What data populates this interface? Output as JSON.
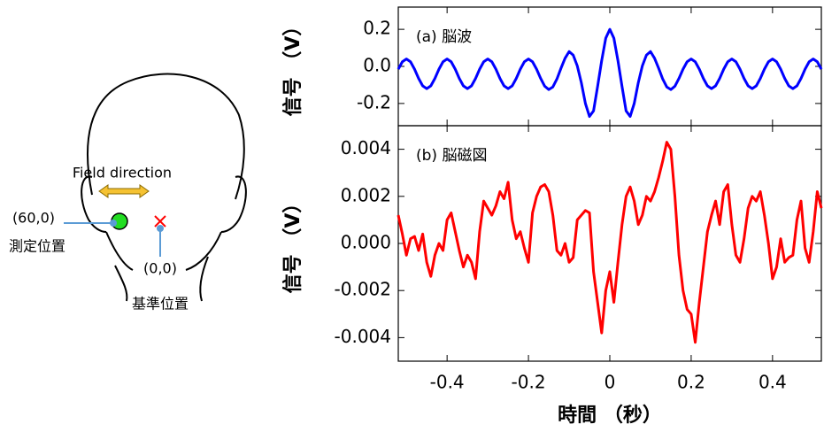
{
  "diagram": {
    "field_label": "Field direction",
    "measure_coord": "(60,0)",
    "measure_label": "測定位置",
    "ref_coord": "(0,0)",
    "ref_label": "基準位置"
  },
  "chart_data": [
    {
      "type": "line",
      "panel_label": "(a) 脳波",
      "y_label": "信号 （V）",
      "x": [
        -0.52,
        -0.51,
        -0.5,
        -0.49,
        -0.48,
        -0.47,
        -0.46,
        -0.45,
        -0.44,
        -0.43,
        -0.42,
        -0.41,
        -0.4,
        -0.39,
        -0.38,
        -0.37,
        -0.36,
        -0.35,
        -0.34,
        -0.33,
        -0.32,
        -0.31,
        -0.3,
        -0.29,
        -0.28,
        -0.27,
        -0.26,
        -0.25,
        -0.24,
        -0.23,
        -0.22,
        -0.21,
        -0.2,
        -0.19,
        -0.18,
        -0.17,
        -0.16,
        -0.15,
        -0.14,
        -0.13,
        -0.12,
        -0.11,
        -0.1,
        -0.09,
        -0.08,
        -0.07,
        -0.06,
        -0.05,
        -0.04,
        -0.03,
        -0.02,
        -0.01,
        0,
        0.01,
        0.02,
        0.03,
        0.04,
        0.05,
        0.06,
        0.07,
        0.08,
        0.09,
        0.1,
        0.11,
        0.12,
        0.13,
        0.14,
        0.15,
        0.16,
        0.17,
        0.18,
        0.19,
        0.2,
        0.21,
        0.22,
        0.23,
        0.24,
        0.25,
        0.26,
        0.27,
        0.28,
        0.29,
        0.3,
        0.31,
        0.32,
        0.33,
        0.34,
        0.35,
        0.36,
        0.37,
        0.38,
        0.39,
        0.4,
        0.41,
        0.42,
        0.43,
        0.44,
        0.45,
        0.46,
        0.47,
        0.48,
        0.49,
        0.5,
        0.51,
        0.52
      ],
      "series": [
        {
          "color": "#0000ff",
          "values": [
            -0.015,
            0.025,
            0.04,
            0.025,
            -0.015,
            -0.065,
            -0.105,
            -0.12,
            -0.105,
            -0.065,
            -0.015,
            0.025,
            0.04,
            0.025,
            -0.015,
            -0.065,
            -0.105,
            -0.12,
            -0.105,
            -0.065,
            -0.015,
            0.025,
            0.04,
            0.025,
            -0.015,
            -0.065,
            -0.105,
            -0.12,
            -0.105,
            -0.065,
            -0.015,
            0.025,
            0.04,
            0.025,
            -0.015,
            -0.065,
            -0.107,
            -0.125,
            -0.111,
            -0.068,
            -0.01,
            0.044,
            0.08,
            0.061,
            0.003,
            -0.088,
            -0.2,
            -0.27,
            -0.24,
            -0.108,
            0.031,
            0.152,
            0.2,
            0.152,
            0.031,
            -0.108,
            -0.24,
            -0.27,
            -0.2,
            -0.088,
            0.003,
            0.061,
            0.08,
            0.044,
            -0.01,
            -0.068,
            -0.111,
            -0.125,
            -0.107,
            -0.065,
            -0.015,
            0.025,
            0.04,
            0.025,
            -0.015,
            -0.065,
            -0.105,
            -0.12,
            -0.105,
            -0.065,
            -0.015,
            0.025,
            0.04,
            0.025,
            -0.015,
            -0.065,
            -0.105,
            -0.12,
            -0.105,
            -0.065,
            -0.015,
            0.025,
            0.04,
            0.025,
            -0.015,
            -0.065,
            -0.105,
            -0.12,
            -0.105,
            -0.065,
            -0.015,
            0.025,
            0.04,
            0.025,
            -0.015
          ]
        }
      ],
      "xlim": [
        -0.52,
        0.52
      ],
      "ylim": [
        -0.32,
        0.32
      ],
      "yticks": [
        -0.2,
        {
          "value": 0,
          "label": "0.0"
        },
        0.2
      ]
    },
    {
      "type": "line",
      "panel_label": "(b) 脳磁図",
      "y_label": "信号 （V）",
      "x_label": "時間 （秒）",
      "x": [
        -0.52,
        -0.51,
        -0.5,
        -0.49,
        -0.48,
        -0.47,
        -0.46,
        -0.45,
        -0.44,
        -0.43,
        -0.42,
        -0.41,
        -0.4,
        -0.39,
        -0.38,
        -0.37,
        -0.36,
        -0.35,
        -0.34,
        -0.33,
        -0.32,
        -0.31,
        -0.3,
        -0.29,
        -0.28,
        -0.27,
        -0.26,
        -0.25,
        -0.24,
        -0.23,
        -0.22,
        -0.21,
        -0.2,
        -0.19,
        -0.18,
        -0.17,
        -0.16,
        -0.15,
        -0.14,
        -0.13,
        -0.12,
        -0.11,
        -0.1,
        -0.09,
        -0.08,
        -0.07,
        -0.06,
        -0.05,
        -0.04,
        -0.03,
        -0.02,
        -0.01,
        0,
        0.01,
        0.02,
        0.03,
        0.04,
        0.05,
        0.06,
        0.07,
        0.08,
        0.09,
        0.1,
        0.11,
        0.12,
        0.13,
        0.14,
        0.15,
        0.16,
        0.17,
        0.18,
        0.19,
        0.2,
        0.21,
        0.22,
        0.23,
        0.24,
        0.25,
        0.26,
        0.27,
        0.28,
        0.29,
        0.3,
        0.31,
        0.32,
        0.33,
        0.34,
        0.35,
        0.36,
        0.37,
        0.38,
        0.39,
        0.4,
        0.41,
        0.42,
        0.43,
        0.44,
        0.45,
        0.46,
        0.47,
        0.48,
        0.49,
        0.5,
        0.51,
        0.52
      ],
      "series": [
        {
          "color": "#ff0000",
          "values": [
            0.0012,
            0.0004,
            -0.0005,
            0.0002,
            0.0003,
            -0.0003,
            0.0004,
            -0.0008,
            -0.0014,
            -0.0005,
            0.0,
            -0.0003,
            0.001,
            0.0013,
            0.0005,
            -0.0003,
            -0.001,
            -0.0005,
            -0.0008,
            -0.0015,
            0.0005,
            0.0018,
            0.0015,
            0.0012,
            0.0016,
            0.0022,
            0.0019,
            0.0026,
            0.001,
            0.0002,
            0.0005,
            -0.0002,
            -0.0008,
            0.0013,
            0.002,
            0.0024,
            0.0025,
            0.0022,
            0.0012,
            -0.0003,
            -0.0005,
            0.0,
            -0.0008,
            -0.0006,
            0.001,
            0.0012,
            0.0014,
            0.0013,
            -0.0012,
            -0.0025,
            -0.0038,
            -0.002,
            -0.0012,
            -0.0025,
            -0.0008,
            0.0008,
            0.002,
            0.0024,
            0.0018,
            0.0008,
            0.0012,
            0.002,
            0.0018,
            0.0022,
            0.0028,
            0.0035,
            0.0043,
            0.004,
            0.002,
            -0.0005,
            -0.002,
            -0.0028,
            -0.003,
            -0.0042,
            -0.0025,
            -0.001,
            0.0005,
            0.0012,
            0.0018,
            0.0008,
            0.0022,
            0.0025,
            0.0008,
            -0.0005,
            -0.0008,
            0.0002,
            0.0015,
            0.002,
            0.0018,
            0.0022,
            0.0012,
            0.0,
            -0.0015,
            -0.001,
            0.0002,
            -0.0008,
            -0.0006,
            -0.0005,
            0.001,
            0.0018,
            -0.0002,
            -0.0008,
            0.0005,
            0.0022,
            0.0015
          ]
        }
      ],
      "xlim": [
        -0.52,
        0.52
      ],
      "xticks": [
        -0.4,
        -0.2,
        0,
        0.2,
        0.4
      ],
      "ylim": [
        -0.005,
        0.005
      ],
      "yticks": [
        -0.004,
        -0.002,
        {
          "value": 0,
          "label": "0.000"
        },
        0.002,
        0.004
      ]
    }
  ]
}
